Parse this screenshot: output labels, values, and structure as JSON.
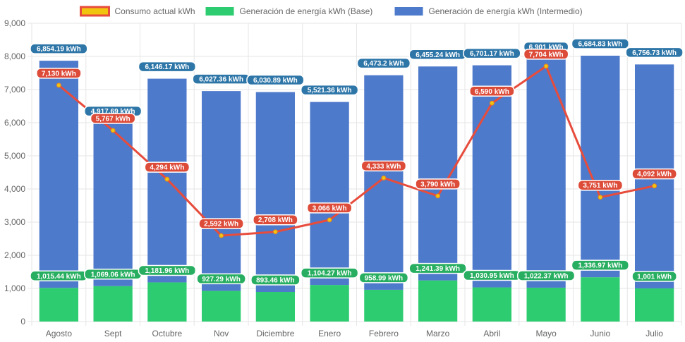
{
  "chart_data": {
    "type": "bar",
    "stacked": true,
    "categories": [
      "Agosto",
      "Sept",
      "Octubre",
      "Nov",
      "Diciembre",
      "Enero",
      "Febrero",
      "Marzo",
      "Abril",
      "Mayo",
      "Junio",
      "Julio"
    ],
    "ylim": [
      0,
      9000
    ],
    "yticks": [
      0,
      1000,
      2000,
      3000,
      4000,
      5000,
      6000,
      7000,
      8000,
      9000
    ],
    "ytick_labels": [
      "0",
      "1,000",
      "2,000",
      "3,000",
      "4,000",
      "5,000",
      "6,000",
      "7,000",
      "8,000",
      "9,000"
    ],
    "grid": true,
    "legend_position": "top",
    "series": [
      {
        "name": "Consumo actual kWh",
        "kind": "line",
        "color": "#e74c3c",
        "point_color": "#f1c40f",
        "values": [
          7130,
          5767,
          4294,
          2592,
          2708,
          3066,
          4333,
          3790,
          6590,
          7704,
          3751,
          4092
        ],
        "labels": [
          "7,130 kWh",
          "5,767 kWh",
          "4,294 kWh",
          "2,592 kWh",
          "2,708 kWh",
          "3,066 kWh",
          "4,333 kWh",
          "3,790 kWh",
          "6,590 kWh",
          "7,704 kWh",
          "3,751 kWh",
          "4,092 kWh"
        ]
      },
      {
        "name": "Generación de energía kWh (Base)",
        "kind": "bar",
        "color": "#2ecc71",
        "label_color": "#27ae60",
        "values": [
          1015.44,
          1069.06,
          1181.96,
          927.29,
          893.46,
          1104.27,
          958.99,
          1241.39,
          1030.95,
          1022.37,
          1336.97,
          1001
        ],
        "labels": [
          "1,015.44 kWh",
          "1,069.06 kWh",
          "1,181.96 kWh",
          "927.29 kWh",
          "893.46 kWh",
          "1,104.27 kWh",
          "958.99 kWh",
          "1,241.39 kWh",
          "1,030.95 kWh",
          "1,022.37 kWh",
          "1,336.97 kWh",
          "1,001 kWh"
        ]
      },
      {
        "name": "Generación de energía kWh (Intermedio)",
        "kind": "bar",
        "color": "#4e7acb",
        "label_color": "#2e76a8",
        "values": [
          6854.19,
          4917.69,
          6146.17,
          6027.36,
          6030.89,
          5521.36,
          6473.2,
          6455.24,
          6701.17,
          6901,
          6684.83,
          6756.73
        ],
        "labels": [
          "6,854.19 kWh",
          "4,917.69 kWh",
          "6,146.17 kWh",
          "6,027.36 kWh",
          "6,030.89 kWh",
          "5,521.36 kWh",
          "6,473.2 kWh",
          "6,455.24 kWh",
          "6,701.17 kWh",
          "6,901 kWh",
          "6,684.83 kWh",
          "6,756.73 kWh"
        ]
      }
    ]
  }
}
